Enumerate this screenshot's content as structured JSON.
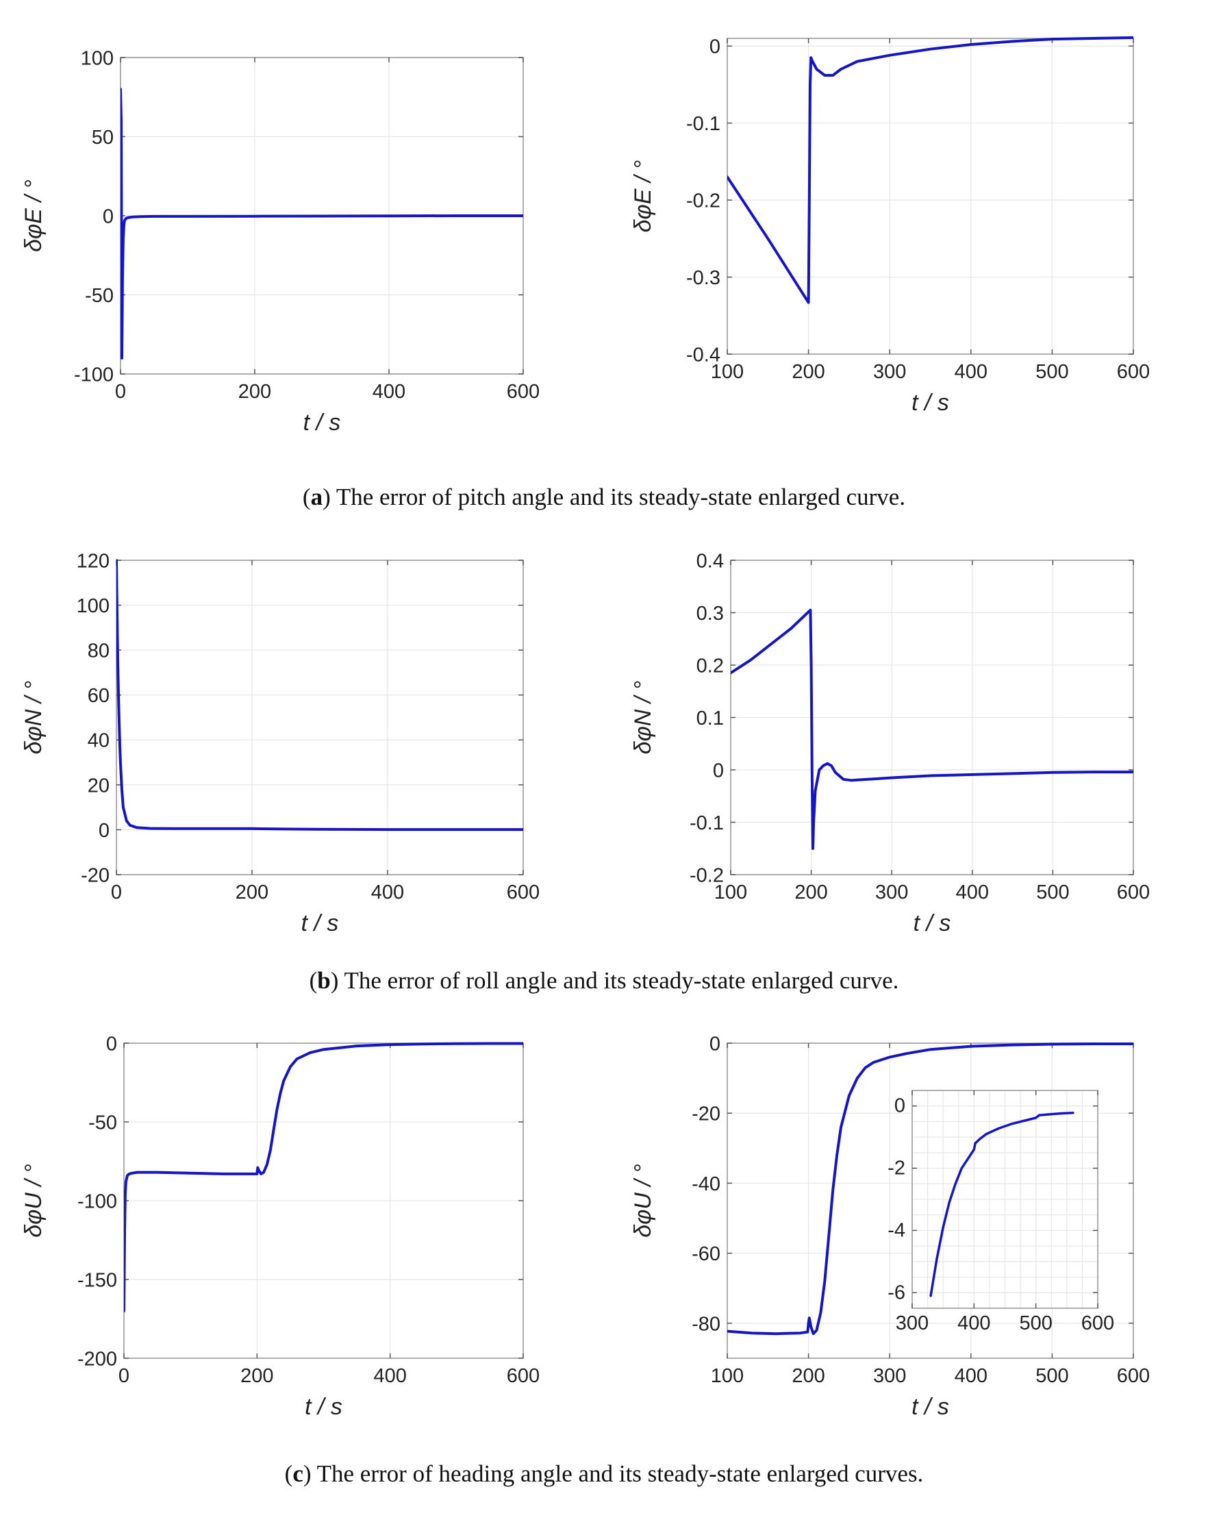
{
  "figure": {
    "captions": [
      {
        "letter": "a",
        "text": ") The error of pitch angle and its steady-state enlarged curve."
      },
      {
        "letter": "b",
        "text": ") The error of roll angle and its steady-state enlarged curve."
      },
      {
        "letter": "c",
        "text": ") The error of heading angle and its steady-state enlarged curves."
      }
    ],
    "colors": {
      "line": "#1515c8",
      "grid": "#e6e6e6",
      "axis": "#9a9a9a",
      "text": "#222222"
    }
  },
  "chart_data": [
    {
      "id": "a-left",
      "type": "line",
      "title": "",
      "xlabel": "t / s",
      "ylabel": "δφE / °",
      "xlim": [
        0,
        600
      ],
      "ylim": [
        -100,
        100
      ],
      "xticks": [
        0,
        200,
        400,
        600
      ],
      "yticks": [
        -100,
        -50,
        0,
        50,
        100
      ],
      "series": [
        {
          "name": "δφE",
          "x": [
            0,
            1,
            2,
            3,
            4,
            5,
            6,
            8,
            10,
            15,
            20,
            30,
            50,
            100,
            200,
            300,
            400,
            500,
            600
          ],
          "y": [
            80,
            60,
            -90,
            -40,
            -15,
            -6,
            -3,
            -1.8,
            -1.3,
            -0.9,
            -0.7,
            -0.5,
            -0.4,
            -0.4,
            -0.3,
            -0.2,
            -0.1,
            0,
            0
          ]
        }
      ]
    },
    {
      "id": "a-right",
      "type": "line",
      "title": "",
      "xlabel": "t / s",
      "ylabel": "δφE / °",
      "xlim": [
        100,
        600
      ],
      "ylim": [
        -0.4,
        0.01
      ],
      "xticks": [
        100,
        200,
        300,
        400,
        500,
        600
      ],
      "yticks": [
        -0.4,
        -0.3,
        -0.2,
        -0.1,
        0
      ],
      "series": [
        {
          "name": "δφE",
          "x": [
            100,
            150,
            200,
            201,
            202,
            203,
            205,
            210,
            220,
            230,
            240,
            260,
            300,
            350,
            400,
            450,
            500,
            550,
            600
          ],
          "y": [
            -0.17,
            -0.25,
            -0.333,
            -0.2,
            -0.05,
            -0.015,
            -0.02,
            -0.03,
            -0.038,
            -0.038,
            -0.03,
            -0.02,
            -0.012,
            -0.004,
            0.002,
            0.006,
            0.009,
            0.01,
            0.011
          ]
        }
      ]
    },
    {
      "id": "b-left",
      "type": "line",
      "title": "",
      "xlabel": "t / s",
      "ylabel": "δφN / °",
      "xlim": [
        0,
        600
      ],
      "ylim": [
        -20,
        120
      ],
      "xticks": [
        0,
        200,
        400,
        600
      ],
      "yticks": [
        -20,
        0,
        20,
        40,
        60,
        80,
        100,
        120
      ],
      "series": [
        {
          "name": "δφN",
          "x": [
            0,
            1,
            2,
            3,
            4,
            5,
            6,
            8,
            10,
            15,
            20,
            30,
            50,
            100,
            200,
            250,
            300,
            400,
            500,
            600
          ],
          "y": [
            120,
            95,
            75,
            60,
            48,
            38,
            30,
            18,
            10,
            4,
            2,
            1,
            0.6,
            0.5,
            0.5,
            0.3,
            0.2,
            0.1,
            0.1,
            0.1
          ]
        }
      ]
    },
    {
      "id": "b-right",
      "type": "line",
      "title": "",
      "xlabel": "t / s",
      "ylabel": "δφN / °",
      "xlim": [
        100,
        600
      ],
      "ylim": [
        -0.2,
        0.4
      ],
      "xticks": [
        100,
        200,
        300,
        400,
        500,
        600
      ],
      "yticks": [
        -0.2,
        -0.1,
        0,
        0.1,
        0.2,
        0.3,
        0.4
      ],
      "series": [
        {
          "name": "δφN",
          "x": [
            100,
            125,
            150,
            175,
            199,
            200,
            201,
            202,
            203,
            205,
            210,
            215,
            220,
            225,
            230,
            240,
            250,
            300,
            350,
            400,
            450,
            500,
            550,
            600
          ],
          "y": [
            0.185,
            0.21,
            0.24,
            0.27,
            0.305,
            0.2,
            0.0,
            -0.15,
            -0.1,
            -0.04,
            0.0,
            0.008,
            0.012,
            0.008,
            -0.005,
            -0.018,
            -0.02,
            -0.015,
            -0.011,
            -0.009,
            -0.007,
            -0.005,
            -0.004,
            -0.004
          ]
        }
      ]
    },
    {
      "id": "c-left",
      "type": "line",
      "title": "",
      "xlabel": "t / s",
      "ylabel": "δφU / °",
      "xlim": [
        0,
        600
      ],
      "ylim": [
        -200,
        0
      ],
      "xticks": [
        0,
        200,
        400,
        600
      ],
      "yticks": [
        -200,
        -150,
        -100,
        -50,
        0
      ],
      "series": [
        {
          "name": "δφU",
          "x": [
            0,
            1,
            2,
            3,
            5,
            8,
            12,
            20,
            50,
            100,
            150,
            190,
            200,
            201,
            203,
            206,
            210,
            215,
            220,
            225,
            230,
            235,
            240,
            250,
            260,
            280,
            300,
            350,
            400,
            450,
            500,
            550,
            600
          ],
          "y": [
            -170,
            -120,
            -95,
            -88,
            -84,
            -83,
            -82.5,
            -82,
            -82,
            -82.5,
            -83,
            -83,
            -83,
            -79,
            -81,
            -83,
            -82,
            -77,
            -68,
            -55,
            -42,
            -32,
            -24,
            -15,
            -10,
            -6,
            -4,
            -1.8,
            -0.9,
            -0.5,
            -0.3,
            -0.2,
            -0.2
          ]
        }
      ]
    },
    {
      "id": "c-right",
      "type": "line",
      "title": "",
      "xlabel": "t / s",
      "ylabel": "δφU / °",
      "xlim": [
        100,
        600
      ],
      "ylim": [
        -90,
        0
      ],
      "xticks": [
        100,
        200,
        300,
        400,
        500,
        600
      ],
      "yticks": [
        -80,
        -60,
        -40,
        -20,
        0
      ],
      "series": [
        {
          "name": "δφU",
          "x": [
            100,
            130,
            160,
            190,
            199,
            200,
            201,
            203,
            206,
            210,
            215,
            220,
            225,
            230,
            235,
            240,
            250,
            260,
            270,
            280,
            300,
            320,
            350,
            400,
            450,
            500,
            550,
            600
          ],
          "y": [
            -82.3,
            -82.8,
            -83,
            -82.8,
            -82.5,
            -80,
            -78.5,
            -81,
            -83,
            -82,
            -77,
            -68,
            -55,
            -42,
            -32,
            -24,
            -15,
            -10,
            -7,
            -5.5,
            -4,
            -3,
            -1.8,
            -0.9,
            -0.5,
            -0.3,
            -0.2,
            -0.2
          ]
        }
      ],
      "inset": {
        "type": "line",
        "xlim": [
          300,
          600
        ],
        "ylim": [
          -6.5,
          0.5
        ],
        "xticks": [
          300,
          400,
          500,
          600
        ],
        "yticks": [
          -6,
          -4,
          -2,
          0
        ],
        "series": [
          {
            "name": "δφU",
            "x": [
              330,
              340,
              350,
              360,
              370,
              380,
              390,
              400,
              402,
              410,
              420,
              440,
              460,
              480,
              500,
              505,
              520,
              540,
              560
            ],
            "y": [
              -6.1,
              -4.9,
              -3.9,
              -3.1,
              -2.5,
              -2.0,
              -1.7,
              -1.4,
              -1.2,
              -1.05,
              -0.9,
              -0.72,
              -0.58,
              -0.48,
              -0.38,
              -0.3,
              -0.27,
              -0.24,
              -0.22
            ]
          }
        ]
      }
    }
  ]
}
